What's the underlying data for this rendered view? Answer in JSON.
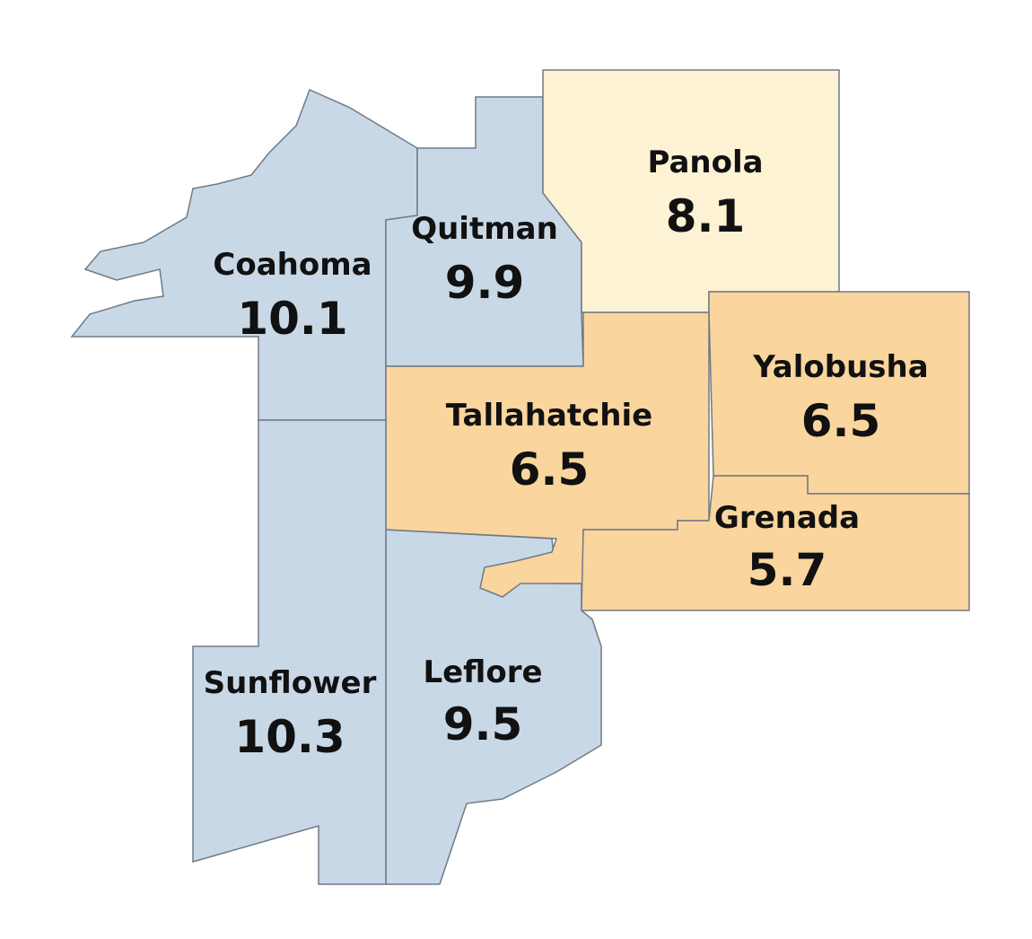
{
  "regions": [
    {
      "name": "Coahoma",
      "value": 10.1,
      "color": "#c9d8e6"
    },
    {
      "name": "Quitman",
      "value": 9.9,
      "color": "#c9d8e6"
    },
    {
      "name": "Panola",
      "value": 8.1,
      "color": "#fdf2d3"
    },
    {
      "name": "Tallahatchie",
      "value": 6.5,
      "color": "#fad59d"
    },
    {
      "name": "Yalobusha",
      "value": 6.5,
      "color": "#fad59d"
    },
    {
      "name": "Grenada",
      "value": 5.7,
      "color": "#fad59d"
    },
    {
      "name": "Sunflower",
      "value": 10.3,
      "color": "#c9d8e6"
    },
    {
      "name": "Leflore",
      "value": 9.5,
      "color": "#c9d8e6"
    }
  ]
}
